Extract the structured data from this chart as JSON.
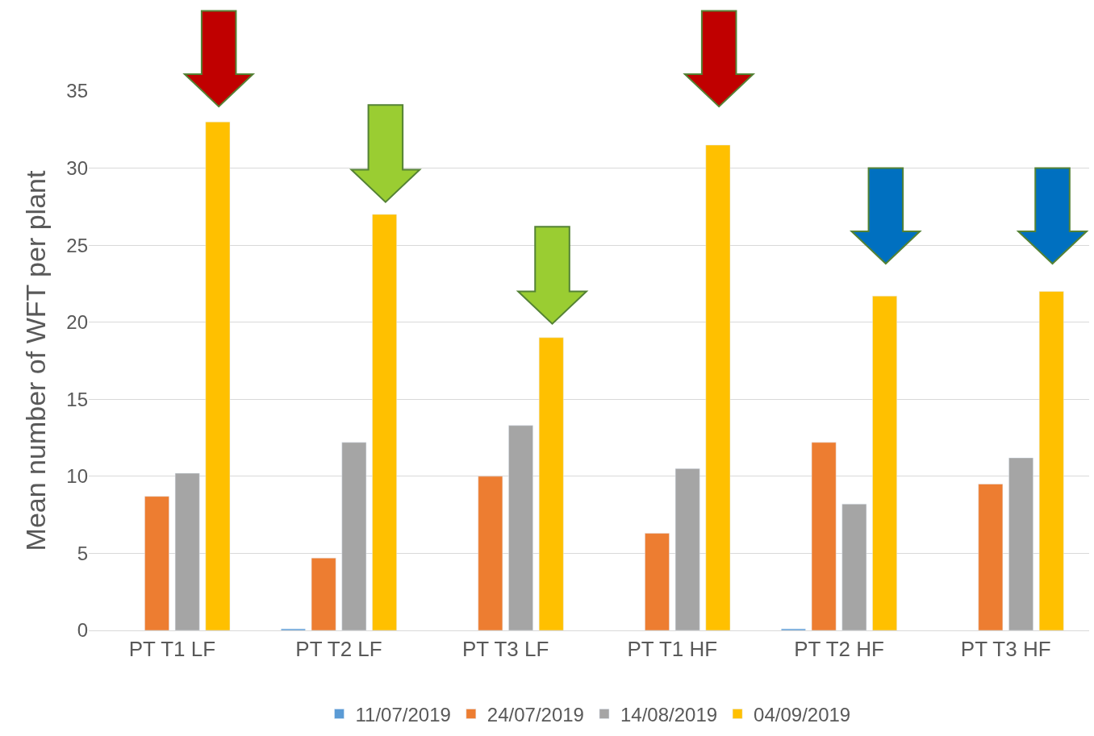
{
  "chart_data": {
    "type": "bar",
    "ylabel": "Mean number of WFT per plant",
    "categories": [
      "PT T1 LF",
      "PT T2 LF",
      "PT T3 LF",
      "PT T1 HF",
      "PT T2 HF",
      "PT T3 HF"
    ],
    "series": [
      {
        "name": "11/07/2019",
        "color": "#5b9bd5",
        "values": [
          null,
          0.1,
          null,
          null,
          0.1,
          null
        ]
      },
      {
        "name": "24/07/2019",
        "color": "#ed7d31",
        "values": [
          8.7,
          4.7,
          10.0,
          6.3,
          12.2,
          9.5
        ]
      },
      {
        "name": "14/08/2019",
        "color": "#a5a5a5",
        "values": [
          10.2,
          12.2,
          13.3,
          10.5,
          8.2,
          11.2
        ]
      },
      {
        "name": "04/09/2019",
        "color": "#ffc000",
        "values": [
          33.0,
          27.0,
          19.0,
          31.5,
          21.7,
          22.0
        ]
      }
    ],
    "ylim": [
      0,
      35
    ],
    "yticks": [
      0,
      5,
      10,
      15,
      20,
      25,
      30,
      35
    ],
    "grid": "y",
    "legend": "bottom"
  }
}
